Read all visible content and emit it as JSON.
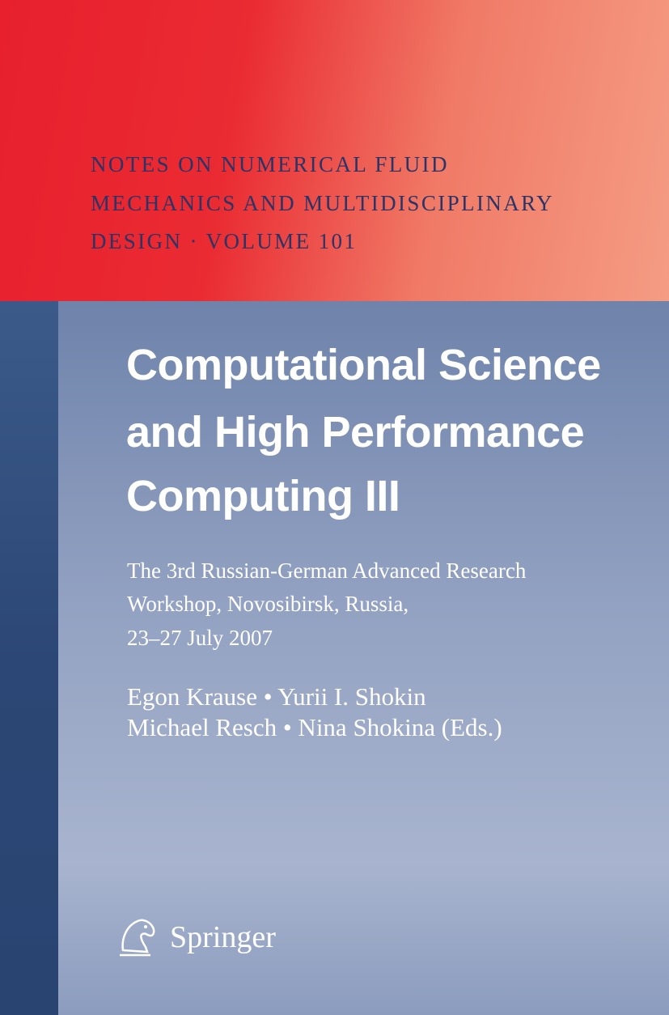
{
  "series": [
    "Notes on Numerical Fluid",
    "Mechanics and Multidisciplinary",
    "Design · Volume 101"
  ],
  "title": [
    "Computational Science",
    "and High Performance",
    "Computing III"
  ],
  "subtitle": [
    "The 3rd Russian-German Advanced Research",
    "Workshop, Novosibirsk, Russia,",
    "23–27 July 2007"
  ],
  "editors": [
    "Egon Krause • Yurii I. Shokin",
    "Michael Resch • Nina Shokina (Eds.)"
  ],
  "publisher": "Springer"
}
